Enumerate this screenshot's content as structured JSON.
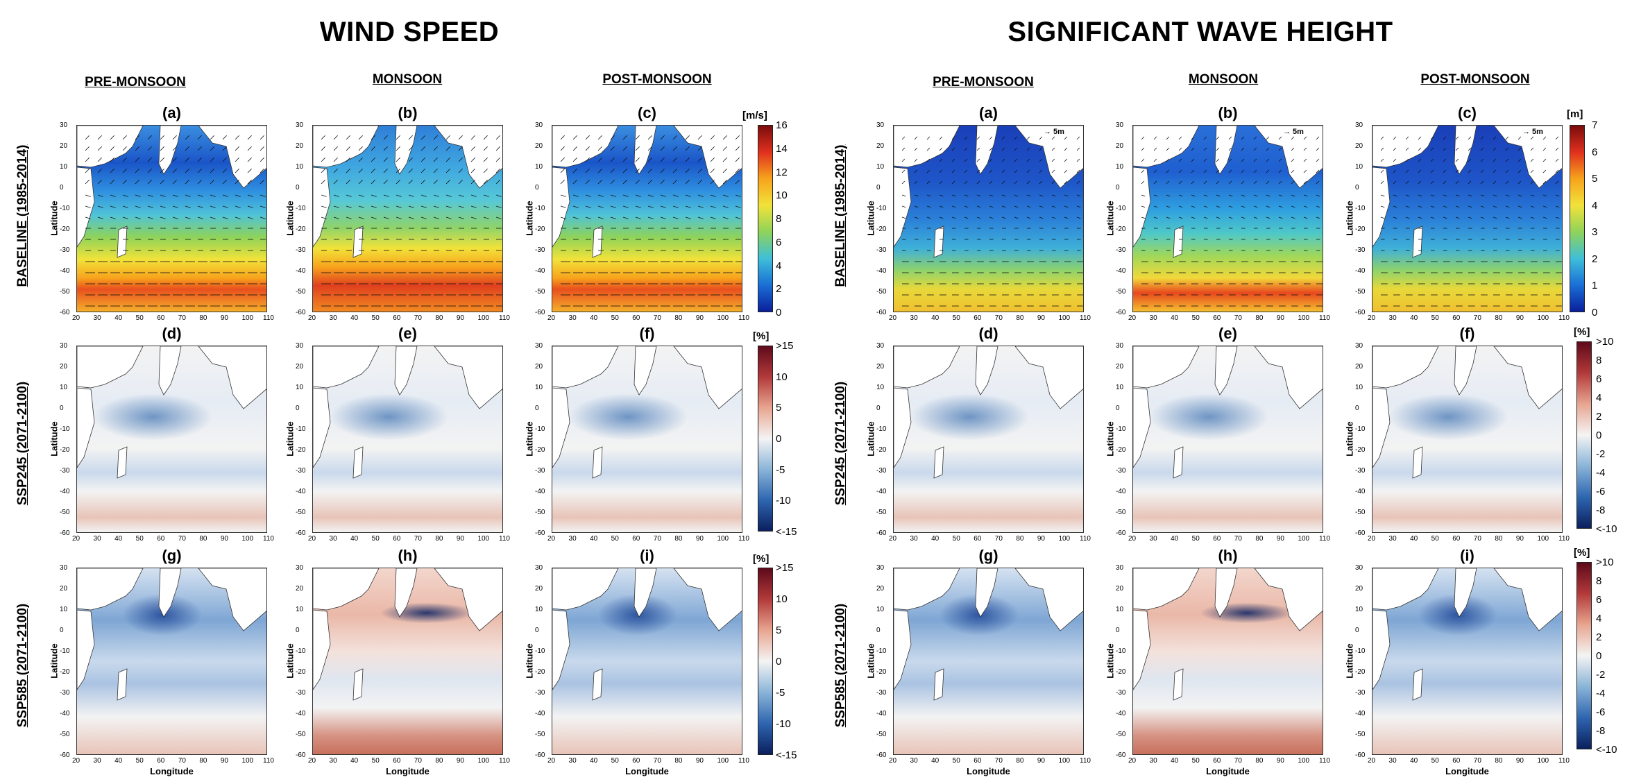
{
  "titles": {
    "left": "WIND SPEED",
    "right": "SIGNIFICANT WAVE HEIGHT"
  },
  "seasons": [
    "PRE-MONSOON",
    "MONSOON",
    "POST-MONSOON"
  ],
  "rows": [
    "BASELINE (1985-2014)",
    "SSP245 (2071-2100)",
    "SSP585 (2071-2100)"
  ],
  "panel_letters": [
    [
      "(a)",
      "(b)",
      "(c)"
    ],
    [
      "(d)",
      "(e)",
      "(f)"
    ],
    [
      "(g)",
      "(h)",
      "(i)"
    ]
  ],
  "axis": {
    "ylabel": "Latitude",
    "xlabel": "Longitude",
    "yticks": [
      "30",
      "20",
      "10",
      "0",
      "-10",
      "-20",
      "-30",
      "-40",
      "-50",
      "-60"
    ],
    "xticks": [
      "20",
      "30",
      "40",
      "50",
      "60",
      "70",
      "80",
      "90",
      "100",
      "110"
    ]
  },
  "colorbars": {
    "wind_baseline": {
      "unit": "[m/s]",
      "ticks": [
        "16",
        "14",
        "12",
        "10",
        "8",
        "6",
        "4",
        "2",
        "0"
      ]
    },
    "wind_change": {
      "unit": "[%]",
      "ticks": [
        ">15",
        "10",
        "5",
        "0",
        "-5",
        "-10",
        "<-15"
      ]
    },
    "wave_baseline": {
      "unit": "[m]",
      "ticks": [
        "7",
        "6",
        "5",
        "4",
        "3",
        "2",
        "1",
        "0"
      ]
    },
    "wave_change": {
      "unit": "[%]",
      "ticks": [
        ">10",
        "8",
        "6",
        "4",
        "2",
        "0",
        "-2",
        "-4",
        "-6",
        "-8",
        "<-10"
      ]
    }
  },
  "vector_reference": "5m",
  "colors": {
    "baseline_low": "#0a1fa0",
    "baseline_mid": "#4fc3e0",
    "baseline_high": "#f2e23a",
    "baseline_max": "#d8261c",
    "change_neg": "#2a5fa8",
    "change_zero": "#f2f2f2",
    "change_pos": "#c0534a"
  }
}
